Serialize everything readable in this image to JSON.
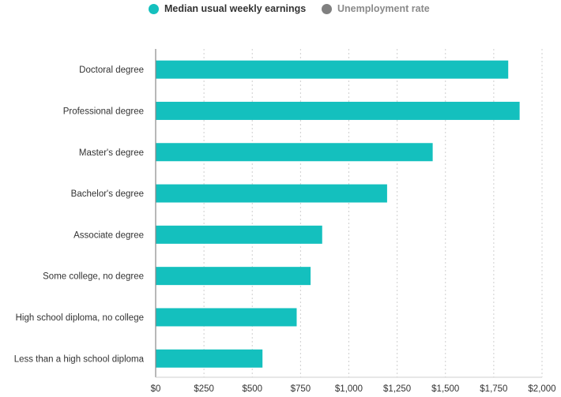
{
  "legend": [
    {
      "label": "Median usual weekly earnings",
      "color": "#14c0be",
      "active": true
    },
    {
      "label": "Unemployment rate",
      "color": "#808080",
      "active": false
    }
  ],
  "colors": {
    "bar": "#14c0be",
    "grid": "#cfcfcf",
    "axis": "#888888",
    "inactive_text": "#8a8a8a",
    "active_text": "#333333"
  },
  "chart_data": {
    "type": "bar",
    "orientation": "horizontal",
    "title": "",
    "xlabel": "",
    "ylabel": "",
    "categories": [
      "Doctoral degree",
      "Professional degree",
      "Master's degree",
      "Bachelor's degree",
      "Associate degree",
      "Some college, no degree",
      "High school diploma, no college",
      "Less than a high school diploma"
    ],
    "series": [
      {
        "name": "Median usual weekly earnings",
        "values": [
          1825,
          1884,
          1434,
          1198,
          862,
          802,
          730,
          553
        ]
      }
    ],
    "xlim": [
      0,
      2000
    ],
    "xticks": [
      0,
      250,
      500,
      750,
      1000,
      1250,
      1500,
      1750,
      2000
    ],
    "xtick_labels": [
      "$0",
      "$250",
      "$500",
      "$750",
      "$1,000",
      "$1,250",
      "$1,500",
      "$1,750",
      "$2,000"
    ],
    "grid": true,
    "legend_position": "top"
  }
}
